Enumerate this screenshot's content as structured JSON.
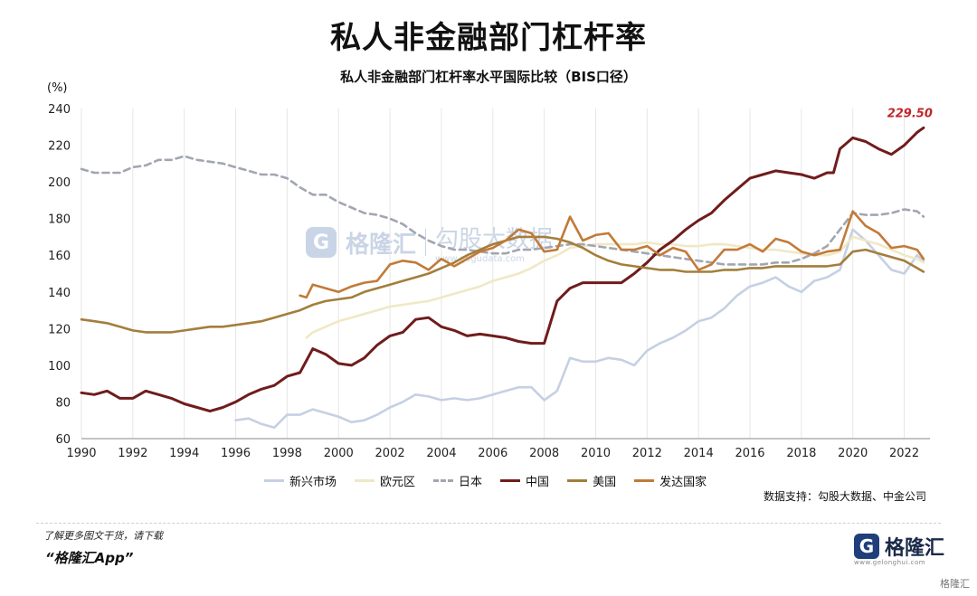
{
  "header": {
    "title": "私人非金融部门杠杆率",
    "subtitle": "私人非金融部门杠杆率水平国际比较（BIS口径）",
    "unit": "(%)"
  },
  "source_text": "数据支持：勾股大数据、中金公司",
  "footer": {
    "note": "了解更多图文干货，请下载",
    "app": "“格隆汇App”",
    "brand_logo": "G",
    "brand_name": "格隆汇",
    "brand_url": "www.gelonghui.com",
    "corner_watermark": "格隆汇"
  },
  "watermark": {
    "logo": "G",
    "brand": "格隆汇",
    "partner": "勾股大数据",
    "partner_url": "www.gogudata.com"
  },
  "colors": {
    "emerging": "#c5d0e3",
    "euro": "#f0e8c6",
    "japan": "#a2a6b2",
    "china": "#701c1c",
    "usa": "#a37e3c",
    "developed": "#c27a37",
    "grid": "#e6e6e6",
    "annotation": "#c0252a"
  },
  "chart_data": {
    "type": "line",
    "xlim": [
      1990,
      2023
    ],
    "ylim": [
      60,
      240
    ],
    "xticks": [
      "1990",
      "1992",
      "1994",
      "1996",
      "1998",
      "2000",
      "2002",
      "2004",
      "2006",
      "2008",
      "2010",
      "2012",
      "2014",
      "2016",
      "2018",
      "2020",
      "2022"
    ],
    "yticks": [
      "60",
      "80",
      "100",
      "120",
      "140",
      "160",
      "180",
      "200",
      "220",
      "240"
    ],
    "grid": "vertical",
    "legend": "bottom",
    "annotation": {
      "text": "229.50",
      "x": 2022.75,
      "y": 229.5
    },
    "series": [
      {
        "name": "新兴市场",
        "style": "solid",
        "color_key": "emerging",
        "x": [
          1996,
          1996.5,
          1997,
          1997.5,
          1998,
          1998.5,
          1999,
          1999.5,
          2000,
          2000.5,
          2001,
          2001.5,
          2002,
          2002.5,
          2003,
          2003.5,
          2004,
          2004.5,
          2005,
          2005.5,
          2006,
          2006.5,
          2007,
          2007.5,
          2008,
          2008.5,
          2009,
          2009.5,
          2010,
          2010.5,
          2011,
          2011.5,
          2012,
          2012.5,
          2013,
          2013.5,
          2014,
          2014.5,
          2015,
          2015.5,
          2016,
          2016.5,
          2017,
          2017.5,
          2018,
          2018.5,
          2019,
          2019.5,
          2020,
          2020.5,
          2021,
          2021.5,
          2022,
          2022.5,
          2022.75
        ],
        "y": [
          70,
          71,
          68,
          66,
          73,
          73,
          76,
          74,
          72,
          69,
          70,
          73,
          77,
          80,
          84,
          83,
          81,
          82,
          81,
          82,
          84,
          86,
          88,
          88,
          81,
          86,
          104,
          102,
          102,
          104,
          103,
          100,
          108,
          112,
          115,
          119,
          124,
          126,
          131,
          138,
          143,
          145,
          148,
          143,
          140,
          146,
          148,
          152,
          174,
          168,
          160,
          152,
          150,
          160,
          157
        ]
      },
      {
        "name": "欧元区",
        "style": "solid",
        "color_key": "euro",
        "x": [
          1998.75,
          1999,
          1999.5,
          2000,
          2000.5,
          2001,
          2001.5,
          2002,
          2002.5,
          2003,
          2003.5,
          2004,
          2004.5,
          2005,
          2005.5,
          2006,
          2006.5,
          2007,
          2007.5,
          2008,
          2008.5,
          2009,
          2009.5,
          2010,
          2010.5,
          2011,
          2011.5,
          2012,
          2012.5,
          2013,
          2013.5,
          2014,
          2014.5,
          2015,
          2015.5,
          2016,
          2016.5,
          2017,
          2017.5,
          2018,
          2018.5,
          2019,
          2019.5,
          2020,
          2020.5,
          2021,
          2021.5,
          2022,
          2022.5,
          2022.75
        ],
        "y": [
          115,
          118,
          121,
          124,
          126,
          128,
          130,
          132,
          133,
          134,
          135,
          137,
          139,
          141,
          143,
          146,
          148,
          150,
          153,
          157,
          160,
          164,
          165,
          166,
          166,
          166,
          166,
          167,
          166,
          166,
          165,
          165,
          166,
          166,
          165,
          164,
          163,
          163,
          162,
          161,
          160,
          160,
          162,
          170,
          168,
          166,
          163,
          160,
          158,
          156
        ]
      },
      {
        "name": "日本",
        "style": "dashed",
        "color_key": "japan",
        "x": [
          1990,
          1990.5,
          1991,
          1991.5,
          1992,
          1992.5,
          1993,
          1993.5,
          1994,
          1994.5,
          1995,
          1995.5,
          1996,
          1996.5,
          1997,
          1997.5,
          1998,
          1998.5,
          1999,
          1999.5,
          2000,
          2000.5,
          2001,
          2001.5,
          2002,
          2002.5,
          2003,
          2003.5,
          2004,
          2004.5,
          2005,
          2005.5,
          2006,
          2006.5,
          2007,
          2007.5,
          2008,
          2008.5,
          2009,
          2009.5,
          2010,
          2010.5,
          2011,
          2011.5,
          2012,
          2012.5,
          2013,
          2013.5,
          2014,
          2014.5,
          2015,
          2015.5,
          2016,
          2016.5,
          2017,
          2017.5,
          2018,
          2018.5,
          2019,
          2019.5,
          2020,
          2020.5,
          2021,
          2021.5,
          2022,
          2022.5,
          2022.75
        ],
        "y": [
          207,
          205,
          205,
          205,
          208,
          209,
          212,
          212,
          214,
          212,
          211,
          210,
          208,
          206,
          204,
          204,
          202,
          197,
          193,
          193,
          189,
          186,
          183,
          182,
          180,
          177,
          172,
          168,
          165,
          163,
          163,
          162,
          161,
          161,
          163,
          163,
          164,
          165,
          166,
          166,
          165,
          164,
          163,
          162,
          161,
          160,
          159,
          158,
          157,
          156,
          155,
          155,
          155,
          155,
          156,
          156,
          158,
          161,
          165,
          174,
          183,
          182,
          182,
          183,
          185,
          184,
          181
        ]
      },
      {
        "name": "中国",
        "style": "solid",
        "color_key": "china",
        "x": [
          1990,
          1990.5,
          1991,
          1991.5,
          1992,
          1992.5,
          1993,
          1993.5,
          1994,
          1994.5,
          1995,
          1995.5,
          1996,
          1996.5,
          1997,
          1997.5,
          1998,
          1998.5,
          1999,
          1999.5,
          2000,
          2000.5,
          2001,
          2001.5,
          2002,
          2002.5,
          2003,
          2003.5,
          2004,
          2004.5,
          2005,
          2005.5,
          2006,
          2006.5,
          2007,
          2007.5,
          2008,
          2008.5,
          2009,
          2009.5,
          2010,
          2010.5,
          2011,
          2011.5,
          2012,
          2012.5,
          2013,
          2013.5,
          2014,
          2014.5,
          2015,
          2015.5,
          2016,
          2016.5,
          2017,
          2017.5,
          2018,
          2018.5,
          2019,
          2019.25,
          2019.5,
          2020,
          2020.5,
          2021,
          2021.5,
          2022,
          2022.5,
          2022.75
        ],
        "y": [
          85,
          84,
          86,
          82,
          82,
          86,
          84,
          82,
          79,
          77,
          75,
          77,
          80,
          84,
          87,
          89,
          94,
          96,
          109,
          106,
          101,
          100,
          104,
          111,
          116,
          118,
          125,
          126,
          121,
          119,
          116,
          117,
          116,
          115,
          113,
          112,
          112,
          135,
          142,
          145,
          145,
          145,
          145,
          150,
          156,
          163,
          168,
          174,
          179,
          183,
          190,
          196,
          202,
          204,
          206,
          205,
          204,
          202,
          205,
          205,
          218,
          224,
          222,
          218,
          215,
          220,
          227,
          229.5
        ]
      },
      {
        "name": "美国",
        "style": "solid",
        "color_key": "usa",
        "x": [
          1990,
          1990.5,
          1991,
          1991.5,
          1992,
          1992.5,
          1993,
          1993.5,
          1994,
          1994.5,
          1995,
          1995.5,
          1996,
          1996.5,
          1997,
          1997.5,
          1998,
          1998.5,
          1999,
          1999.5,
          2000,
          2000.5,
          2001,
          2001.5,
          2002,
          2002.5,
          2003,
          2003.5,
          2004,
          2004.5,
          2005,
          2005.5,
          2006,
          2006.5,
          2007,
          2007.5,
          2008,
          2008.5,
          2009,
          2009.5,
          2010,
          2010.5,
          2011,
          2011.5,
          2012,
          2012.5,
          2013,
          2013.5,
          2014,
          2014.5,
          2015,
          2015.5,
          2016,
          2016.5,
          2017,
          2017.5,
          2018,
          2018.5,
          2019,
          2019.5,
          2020,
          2020.5,
          2021,
          2021.5,
          2022,
          2022.5,
          2022.75
        ],
        "y": [
          125,
          124,
          123,
          121,
          119,
          118,
          118,
          118,
          119,
          120,
          121,
          121,
          122,
          123,
          124,
          126,
          128,
          130,
          133,
          135,
          136,
          137,
          140,
          142,
          144,
          146,
          148,
          150,
          153,
          156,
          160,
          163,
          166,
          168,
          170,
          170,
          170,
          169,
          167,
          164,
          160,
          157,
          155,
          154,
          153,
          152,
          152,
          151,
          151,
          151,
          152,
          152,
          153,
          153,
          154,
          154,
          154,
          154,
          154,
          155,
          162,
          163,
          161,
          159,
          157,
          153,
          151
        ]
      },
      {
        "name": "发达国家",
        "style": "solid",
        "color_key": "developed",
        "x": [
          1998.5,
          1998.75,
          1999,
          1999.5,
          2000,
          2000.5,
          2001,
          2001.5,
          2002,
          2002.5,
          2003,
          2003.5,
          2004,
          2004.5,
          2005,
          2005.5,
          2006,
          2006.5,
          2007,
          2007.5,
          2008,
          2008.5,
          2009,
          2009.5,
          2010,
          2010.5,
          2011,
          2011.5,
          2012,
          2012.5,
          2013,
          2013.5,
          2014,
          2014.5,
          2015,
          2015.5,
          2016,
          2016.5,
          2017,
          2017.5,
          2018,
          2018.5,
          2019,
          2019.5,
          2020,
          2020.5,
          2021,
          2021.5,
          2022,
          2022.5,
          2022.75
        ],
        "y": [
          138,
          137,
          144,
          142,
          140,
          143,
          145,
          146,
          155,
          157,
          156,
          152,
          158,
          154,
          158,
          162,
          164,
          168,
          174,
          172,
          162,
          163,
          181,
          168,
          171,
          172,
          163,
          163,
          165,
          160,
          164,
          162,
          152,
          155,
          163,
          163,
          166,
          162,
          169,
          167,
          162,
          160,
          162,
          163,
          184,
          176,
          172,
          164,
          165,
          163,
          158
        ]
      }
    ]
  }
}
